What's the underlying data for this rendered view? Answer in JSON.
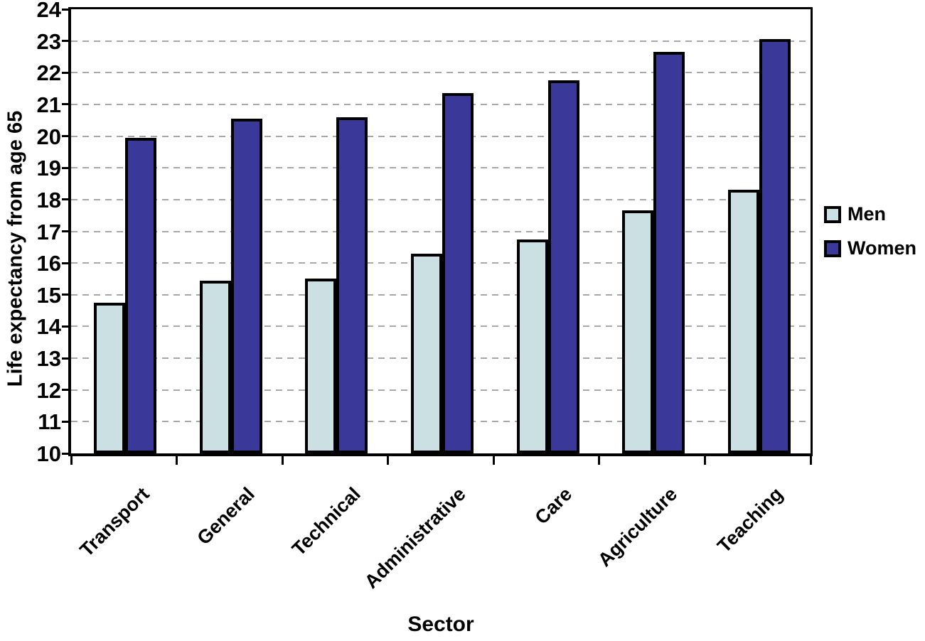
{
  "chart_data": {
    "type": "bar",
    "title": "",
    "xlabel": "Sector",
    "ylabel": "Life expectancy from age 65",
    "categories": [
      "Transport",
      "General",
      "Technical",
      "Administrative",
      "Care",
      "Agriculture",
      "Teaching"
    ],
    "series": [
      {
        "name": "Men",
        "color": "#cbe0e3",
        "values": [
          14.75,
          15.45,
          15.5,
          16.3,
          16.75,
          17.65,
          18.3
        ]
      },
      {
        "name": "Women",
        "color": "#3a399a",
        "values": [
          19.95,
          20.55,
          20.6,
          21.35,
          21.75,
          22.65,
          23.05
        ]
      }
    ],
    "ylim": [
      10,
      24
    ],
    "ytick_step": 1,
    "grid": "horizontal-dashed",
    "gridline_color": "#a8a8a8",
    "bar_border_color": "#000000",
    "axis_color": "#000000",
    "legend_position": "right"
  }
}
